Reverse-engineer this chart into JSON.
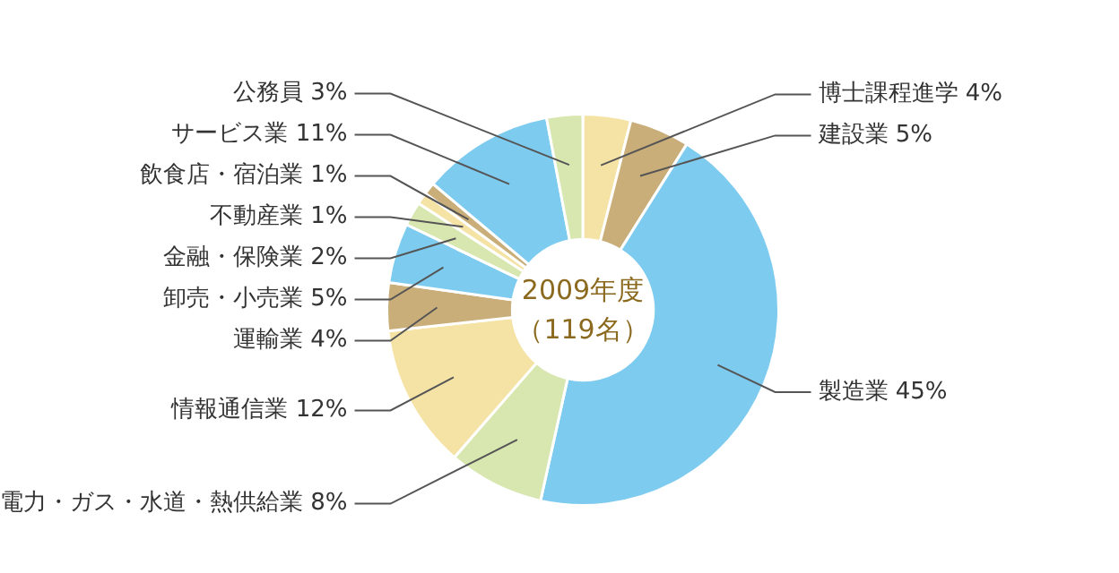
{
  "chart_data": {
    "type": "donut",
    "title": "2009年度",
    "subtitle": "（119名）",
    "categories": [
      "博士課程進学",
      "建設業",
      "製造業",
      "電力・ガス・水道・熱供給業",
      "情報通信業",
      "運輸業",
      "卸売・小売業",
      "金融・保険業",
      "不動産業",
      "飲食店・宿泊業",
      "サービス業",
      "公務員"
    ],
    "values": [
      4,
      5,
      45,
      8,
      12,
      4,
      5,
      2,
      1,
      1,
      11,
      3
    ],
    "value_labels": [
      "4%",
      "5%",
      "45%",
      "8%",
      "12%",
      "4%",
      "5%",
      "2%",
      "1%",
      "1%",
      "11%",
      "3%"
    ],
    "colors": [
      "#f5e3a6",
      "#c9ae7a",
      "#7ecbf0",
      "#d8e6b0",
      "#f5e3a6",
      "#c9ae7a",
      "#7ecbf0",
      "#d8e6b0",
      "#f5e3a6",
      "#c9ae7a",
      "#7ecbf0",
      "#d8e6b0"
    ],
    "legend": false
  }
}
